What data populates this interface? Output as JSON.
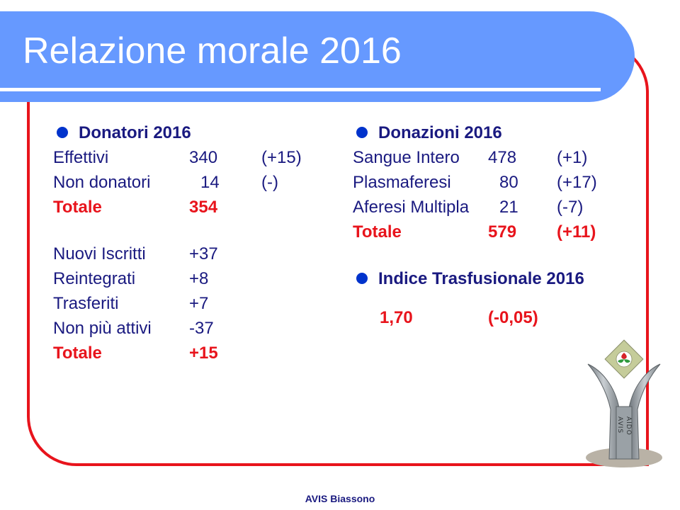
{
  "title": "Relazione morale 2016",
  "donatori": {
    "heading": "Donatori 2016",
    "rows": [
      {
        "label": "Effettivi",
        "value": "340",
        "change": "(+15)"
      },
      {
        "label": "Non donatori",
        "value": "14",
        "change": "(-)"
      }
    ],
    "totale": {
      "label": "Totale",
      "value": "354"
    },
    "movements": [
      {
        "label": "Nuovi Iscritti",
        "value": "+37"
      },
      {
        "label": "Reintegrati",
        "value": "+8"
      },
      {
        "label": "Trasferiti",
        "value": "+7"
      },
      {
        "label": "Non più attivi",
        "value": "-37"
      }
    ],
    "totale2": {
      "label": "Totale",
      "value": "+15"
    }
  },
  "donazioni": {
    "heading": "Donazioni 2016",
    "rows": [
      {
        "label": "Sangue Intero",
        "value": "478",
        "change": "(+1)"
      },
      {
        "label": "Plasmaferesi",
        "value": "80",
        "change": "(+17)"
      },
      {
        "label": "Aferesi Multipla",
        "value": "21",
        "change": "(-7)"
      }
    ],
    "totale": {
      "label": "Totale",
      "value": "579",
      "change": "(+11)"
    }
  },
  "indice": {
    "heading": "Indice Trasfusionale 2016",
    "value": "1,70",
    "change": "(-0,05)"
  },
  "logo": {
    "text_left": "AVIS",
    "text_right": "AIDO"
  },
  "footer": "AVIS Biassono",
  "colors": {
    "title_bar": "#6699ff",
    "frame": "#e8141c",
    "text": "#1a1a80",
    "highlight": "#e8141c",
    "bullet": "#0033cc"
  }
}
